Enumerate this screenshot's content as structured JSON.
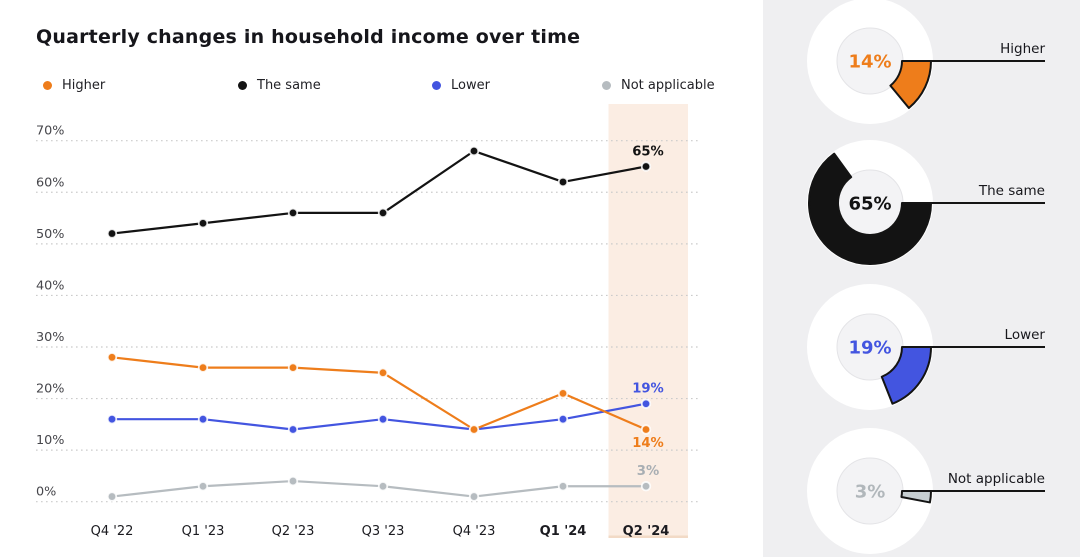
{
  "title": "Quarterly changes in household income over time",
  "colors": {
    "background": "#ffffff",
    "panel_background": "#efeff1",
    "highlight_band": "#fbede3",
    "highlight_band_edge": "#f2dac6",
    "gridline": "#cbcbcb",
    "axis_text": "#46464b",
    "x_label_text": "#1b1b20",
    "callout_line": "#141414",
    "donut_ring": "#ffffff",
    "donut_hole": "#f3f3f5"
  },
  "chart_data": [
    {
      "type": "line",
      "title": "Quarterly changes in household income over time",
      "categories": [
        "Q4 '22",
        "Q1 '23",
        "Q2 '23",
        "Q3 '23",
        "Q4 '23",
        "Q1 '24",
        "Q2 '24"
      ],
      "bold_categories": [
        "Q1 '24",
        "Q2 '24"
      ],
      "highlighted_category": "Q2 '24",
      "series": [
        {
          "name": "Higher",
          "color": "#ee7d1b",
          "label_color": "#ee7d1b",
          "values": [
            28,
            26,
            26,
            25,
            14,
            21,
            14
          ],
          "end_label": "14%",
          "end_label_side": "below"
        },
        {
          "name": "The same",
          "color": "#131313",
          "label_color": "#131313",
          "values": [
            52,
            54,
            56,
            56,
            68,
            62,
            65
          ],
          "end_label": "65%",
          "end_label_side": "above"
        },
        {
          "name": "Lower",
          "color": "#4355e0",
          "label_color": "#4355e0",
          "values": [
            16,
            16,
            14,
            16,
            14,
            16,
            19
          ],
          "end_label": "19%",
          "end_label_side": "above"
        },
        {
          "name": "Not applicable",
          "color": "#b6bcc0",
          "label_color": "#a8aeb3",
          "values": [
            1,
            3,
            4,
            3,
            1,
            3,
            3
          ],
          "end_label": "3%",
          "end_label_side": "above"
        }
      ],
      "ylim": [
        0,
        70
      ],
      "yticks": [
        "70%",
        "60%",
        "50%",
        "40%",
        "30%",
        "20%",
        "10%",
        "0%"
      ],
      "ylabel": "",
      "xlabel": "",
      "grid": "horizontal-dotted",
      "legend_position": "top"
    },
    {
      "type": "pie",
      "variant": "donut-list",
      "slices": [
        {
          "label": "Higher",
          "value": 14,
          "value_label": "14%",
          "color": "#ee7d1b",
          "text_color": "#ee7d1b"
        },
        {
          "label": "The same",
          "value": 65,
          "value_label": "65%",
          "color": "#131313",
          "text_color": "#131313"
        },
        {
          "label": "Lower",
          "value": 19,
          "value_label": "19%",
          "color": "#4355e0",
          "text_color": "#4355e0"
        },
        {
          "label": "Not applicable",
          "value": 3,
          "value_label": "3%",
          "color": "#c6ced1",
          "text_color": "#b1b7bb"
        }
      ]
    }
  ]
}
